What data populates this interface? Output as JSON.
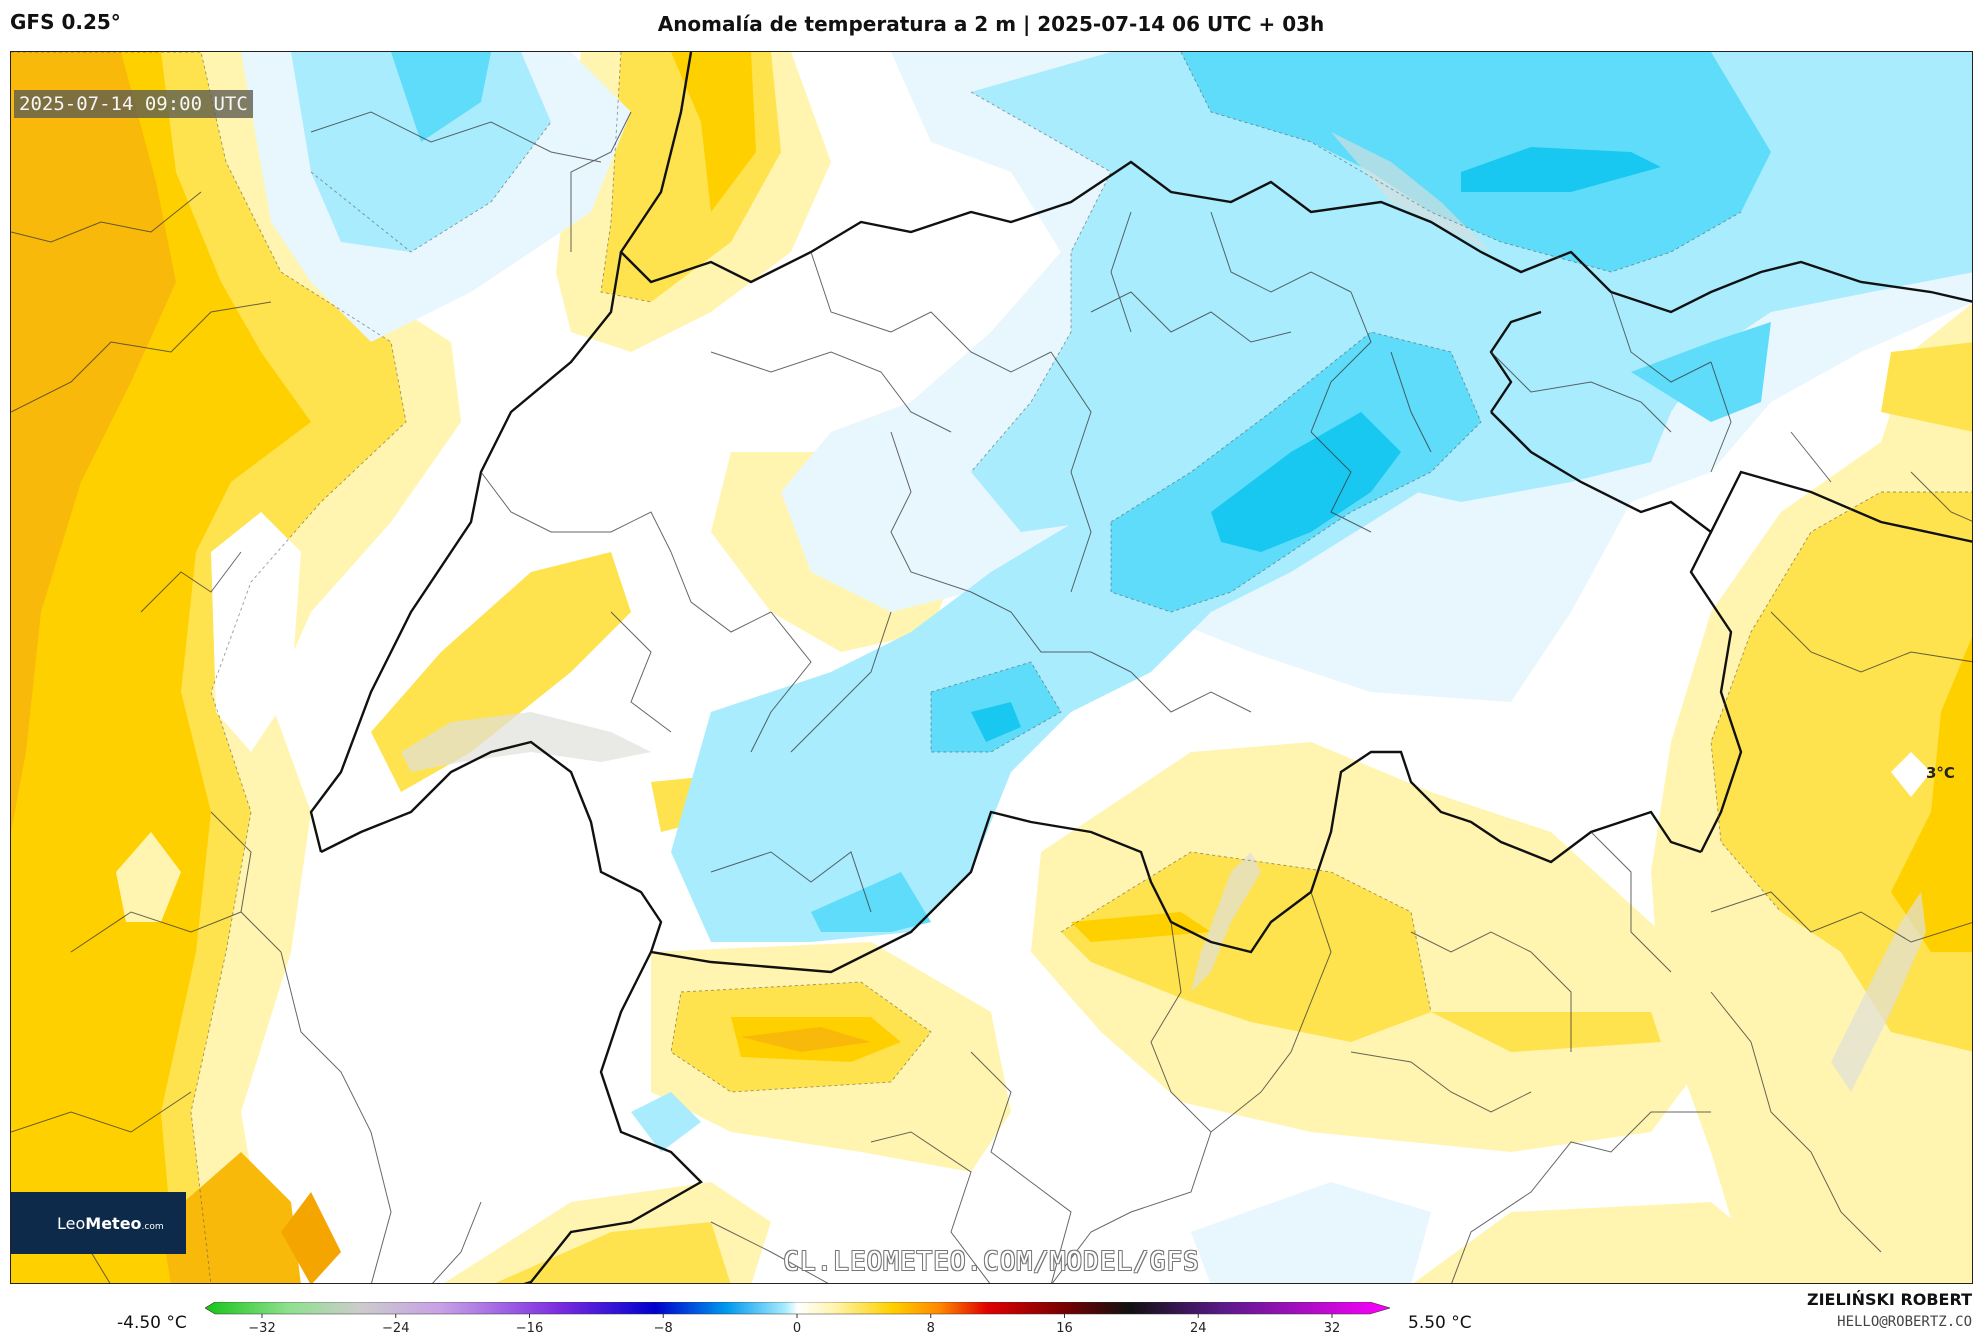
{
  "header": {
    "model": "GFS 0.25°",
    "title": "Anomalía de temperatura a 2 m | 2025-07-14 06 UTC + 03h"
  },
  "map": {
    "valid_time": "2025-07-14 09:00 UTC",
    "max_label": "3°C",
    "watermark": "CL.LEOMETEO.COM/MODEL/GFS",
    "logo": {
      "name_light": "Leo",
      "name_bold": "Meteo",
      "suffix": ".com",
      "icon": "sun-icon"
    },
    "colors": {
      "warm_light": "#fff5b0",
      "warm_mid": "#fee34e",
      "warm_strong": "#ffd000",
      "warm_deep": "#f9b90b",
      "cold_light": "#e8f6fd",
      "cold_mid": "#a9ecfd",
      "cold_strong": "#5fdcf9",
      "cold_deep": "#18c8f0"
    }
  },
  "colorbar": {
    "min_label": "-4.50 °C",
    "max_label": "5.50 °C",
    "ticks": [
      "−32",
      "−24",
      "−16",
      "−8",
      "0",
      "8",
      "16",
      "24",
      "32"
    ]
  },
  "credits": {
    "author": "ZIELIŃSKI ROBERT",
    "email": "HELLO@ROBERTZ.CO"
  }
}
